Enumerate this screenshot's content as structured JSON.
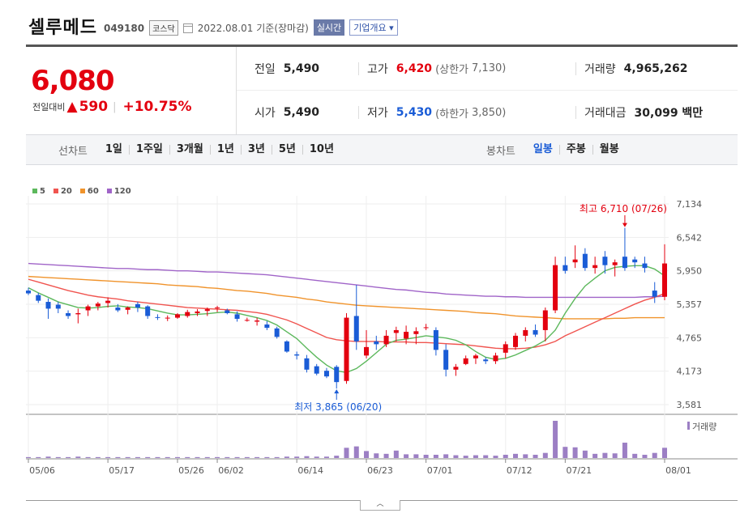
{
  "header": {
    "name": "셀루메드",
    "code": "049180",
    "market": "코스닥",
    "date": "2022.08.01",
    "date_suffix": "기준(장마감)",
    "realtime": "실시간",
    "company": "기업개요"
  },
  "price": {
    "current": "6,080",
    "change_label": "전일대비",
    "change_value": "590",
    "change_pct": "+10.75%"
  },
  "info": {
    "prev_close_label": "전일",
    "prev_close": "5,490",
    "high_label": "고가",
    "high": "6,420",
    "upper_limit_label": "(상한가",
    "upper_limit": "7,130)",
    "volume_label": "거래량",
    "volume": "4,965,262",
    "open_label": "시가",
    "open": "5,490",
    "low_label": "저가",
    "low": "5,430",
    "lower_limit_label": "(하한가",
    "lower_limit": "3,850)",
    "value_label": "거래대금",
    "value": "30,099 백만"
  },
  "tabs": {
    "line_label": "선차트",
    "line_tabs": [
      "1일",
      "1주일",
      "3개월",
      "1년",
      "3년",
      "5년",
      "10년"
    ],
    "candle_label": "봉차트",
    "candle_tabs": [
      "일봉",
      "주봉",
      "월봉"
    ],
    "active_candle": "일봉"
  },
  "chart_data": {
    "type": "candlestick",
    "legend": [
      {
        "name": "5",
        "color": "#5cb85c"
      },
      {
        "name": "20",
        "color": "#f0544f"
      },
      {
        "name": "60",
        "color": "#f0932b"
      },
      {
        "name": "120",
        "color": "#a064c8"
      }
    ],
    "y_ticks": [
      "7,134",
      "6,542",
      "5,950",
      "5,357",
      "4,765",
      "4,173",
      "3,581"
    ],
    "ylim": [
      3581,
      7134
    ],
    "x_ticks": [
      "05/06",
      "05/17",
      "05/26",
      "06/02",
      "06/14",
      "06/23",
      "07/01",
      "07/12",
      "07/21",
      "08/01"
    ],
    "high_annotation": "최고 6,710 (07/26)",
    "low_annotation": "최저 3,865 (06/20)",
    "volume_label": "거래량",
    "candles": [
      [
        5600,
        5650,
        5520,
        5550
      ],
      [
        5520,
        5560,
        5380,
        5420
      ],
      [
        5400,
        5460,
        5100,
        5280
      ],
      [
        5350,
        5400,
        5200,
        5280
      ],
      [
        5200,
        5250,
        5100,
        5150
      ],
      [
        5180,
        5280,
        5020,
        5200
      ],
      [
        5250,
        5350,
        5150,
        5320
      ],
      [
        5320,
        5400,
        5250,
        5370
      ],
      [
        5380,
        5480,
        5300,
        5420
      ],
      [
        5300,
        5360,
        5220,
        5250
      ],
      [
        5260,
        5320,
        5180,
        5300
      ],
      [
        5360,
        5400,
        5220,
        5300
      ],
      [
        5320,
        5340,
        5100,
        5150
      ],
      [
        5130,
        5180,
        5080,
        5120
      ],
      [
        5120,
        5160,
        5060,
        5120
      ],
      [
        5120,
        5200,
        5100,
        5180
      ],
      [
        5150,
        5260,
        5120,
        5220
      ],
      [
        5200,
        5270,
        5150,
        5230
      ],
      [
        5240,
        5300,
        5150,
        5270
      ],
      [
        5290,
        5330,
        5220,
        5300
      ],
      [
        5250,
        5280,
        5180,
        5200
      ],
      [
        5180,
        5230,
        5050,
        5100
      ],
      [
        5080,
        5120,
        5050,
        5080
      ],
      [
        5050,
        5120,
        4980,
        5070
      ],
      [
        5000,
        5060,
        4900,
        4940
      ],
      [
        4930,
        4960,
        4750,
        4780
      ],
      [
        4700,
        4720,
        4500,
        4520
      ],
      [
        4470,
        4520,
        4380,
        4450
      ],
      [
        4400,
        4460,
        4150,
        4200
      ],
      [
        4260,
        4300,
        4100,
        4130
      ],
      [
        4180,
        4230,
        4050,
        4080
      ],
      [
        4250,
        4280,
        3865,
        3980
      ],
      [
        4000,
        5200,
        3950,
        5120
      ],
      [
        5150,
        5700,
        4550,
        4700
      ],
      [
        4450,
        4900,
        4400,
        4600
      ],
      [
        4700,
        4800,
        4550,
        4650
      ],
      [
        4650,
        4900,
        4600,
        4800
      ],
      [
        4850,
        4960,
        4700,
        4900
      ],
      [
        4750,
        4980,
        4650,
        4870
      ],
      [
        4830,
        4950,
        4650,
        4880
      ],
      [
        4950,
        5010,
        4900,
        4950
      ],
      [
        4900,
        4950,
        4450,
        4550
      ],
      [
        4550,
        4650,
        4080,
        4200
      ],
      [
        4200,
        4300,
        4090,
        4250
      ],
      [
        4300,
        4450,
        4280,
        4400
      ],
      [
        4400,
        4480,
        4300,
        4450
      ],
      [
        4380,
        4420,
        4300,
        4350
      ],
      [
        4350,
        4500,
        4300,
        4450
      ],
      [
        4500,
        4700,
        4400,
        4650
      ],
      [
        4600,
        4850,
        4550,
        4800
      ],
      [
        4800,
        4950,
        4700,
        4900
      ],
      [
        4900,
        5000,
        4780,
        4820
      ],
      [
        4900,
        5300,
        4700,
        5250
      ],
      [
        5250,
        6200,
        5200,
        6050
      ],
      [
        6050,
        6200,
        5900,
        5950
      ],
      [
        6100,
        6400,
        6000,
        6150
      ],
      [
        6250,
        6350,
        5950,
        6000
      ],
      [
        6000,
        6200,
        5900,
        6050
      ],
      [
        6200,
        6300,
        5900,
        6050
      ],
      [
        6050,
        6150,
        5850,
        6100
      ],
      [
        6200,
        6710,
        5950,
        6000
      ],
      [
        6150,
        6200,
        6000,
        6100
      ],
      [
        6080,
        6200,
        5920,
        6000
      ],
      [
        5600,
        5750,
        5380,
        5490
      ],
      [
        5490,
        6420,
        5430,
        6080
      ]
    ],
    "ma5": [
      5650,
      5560,
      5480,
      5400,
      5350,
      5300,
      5290,
      5300,
      5320,
      5330,
      5310,
      5300,
      5280,
      5240,
      5200,
      5170,
      5170,
      5180,
      5190,
      5210,
      5220,
      5200,
      5160,
      5120,
      5070,
      4990,
      4870,
      4750,
      4580,
      4420,
      4280,
      4180,
      4150,
      4220,
      4350,
      4500,
      4650,
      4720,
      4740,
      4770,
      4800,
      4780,
      4760,
      4720,
      4640,
      4520,
      4420,
      4380,
      4400,
      4460,
      4540,
      4620,
      4720,
      4900,
      5200,
      5460,
      5680,
      5820,
      5950,
      6010,
      6030,
      6040,
      6040,
      5980,
      5860
    ],
    "ma20": [
      5800,
      5750,
      5700,
      5650,
      5600,
      5560,
      5520,
      5490,
      5470,
      5450,
      5420,
      5400,
      5380,
      5360,
      5340,
      5320,
      5300,
      5290,
      5280,
      5270,
      5260,
      5250,
      5230,
      5210,
      5180,
      5130,
      5080,
      5010,
      4930,
      4850,
      4770,
      4730,
      4710,
      4700,
      4700,
      4700,
      4690,
      4690,
      4690,
      4680,
      4680,
      4670,
      4660,
      4650,
      4640,
      4620,
      4600,
      4580,
      4570,
      4570,
      4580,
      4600,
      4640,
      4700,
      4800,
      4880,
      4960,
      5040,
      5120,
      5200,
      5280,
      5360,
      5430,
      5480,
      5550
    ],
    "ma60": [
      5850,
      5840,
      5830,
      5820,
      5810,
      5800,
      5790,
      5780,
      5770,
      5760,
      5750,
      5740,
      5730,
      5720,
      5700,
      5690,
      5680,
      5670,
      5650,
      5640,
      5620,
      5600,
      5590,
      5570,
      5550,
      5520,
      5500,
      5480,
      5450,
      5430,
      5400,
      5380,
      5360,
      5340,
      5330,
      5320,
      5310,
      5300,
      5290,
      5280,
      5270,
      5260,
      5250,
      5240,
      5230,
      5210,
      5200,
      5190,
      5170,
      5150,
      5140,
      5130,
      5120,
      5110,
      5100,
      5100,
      5100,
      5100,
      5100,
      5110,
      5110,
      5120,
      5120,
      5120,
      5120
    ],
    "ma120": [
      6080,
      6070,
      6060,
      6050,
      6040,
      6030,
      6020,
      6010,
      6000,
      5990,
      5990,
      5980,
      5970,
      5970,
      5960,
      5950,
      5950,
      5940,
      5930,
      5930,
      5920,
      5910,
      5900,
      5890,
      5880,
      5860,
      5840,
      5820,
      5800,
      5780,
      5760,
      5740,
      5720,
      5700,
      5680,
      5660,
      5640,
      5620,
      5610,
      5590,
      5570,
      5560,
      5540,
      5530,
      5520,
      5510,
      5500,
      5500,
      5490,
      5490,
      5480,
      5480,
      5480,
      5480,
      5480,
      5480,
      5480,
      5480,
      5480,
      5480,
      5480,
      5480,
      5490,
      5490,
      5500
    ],
    "volumes": [
      2,
      2,
      3,
      2,
      2,
      3,
      2,
      2,
      2,
      2,
      2,
      2,
      2,
      2,
      2,
      2,
      2,
      2,
      2,
      2,
      2,
      2,
      2,
      2,
      2,
      2,
      3,
      3,
      4,
      3,
      3,
      5,
      22,
      25,
      15,
      10,
      9,
      16,
      8,
      8,
      7,
      7,
      8,
      6,
      5,
      6,
      6,
      5,
      7,
      9,
      8,
      7,
      11,
      80,
      24,
      23,
      16,
      9,
      11,
      10,
      33,
      9,
      7,
      11,
      22
    ]
  }
}
